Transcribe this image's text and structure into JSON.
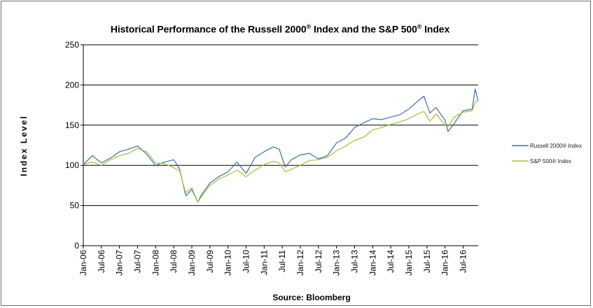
{
  "chart_data": {
    "type": "line",
    "title_parts": [
      "Historical Performance of the Russell 2000",
      "®",
      " Index and the S&P 500",
      "®",
      " Index"
    ],
    "ylabel": "Index Level",
    "xlabel": "",
    "source_label": "Source:  Bloomberg",
    "ylim": [
      0,
      250
    ],
    "yticks": [
      0,
      50,
      100,
      150,
      200,
      250
    ],
    "grid": true,
    "legend_position": "right",
    "xlim": [
      "2006-01",
      "2016-12"
    ],
    "xticks": [
      "Jan-06",
      "Jul-06",
      "Jan-07",
      "Jul-07",
      "Jan-08",
      "Jul-08",
      "Jan-09",
      "Jul-09",
      "Jan-10",
      "Jul-10",
      "Jan-11",
      "Jul-11",
      "Jan-12",
      "Jul-12",
      "Jan-13",
      "Jul-13",
      "Jan-14",
      "Jul-14",
      "Jan-15",
      "Jul-15",
      "Jan-16",
      "Jul-16"
    ],
    "x": [
      "2006-01",
      "2006-04",
      "2006-07",
      "2006-10",
      "2007-01",
      "2007-04",
      "2007-07",
      "2007-10",
      "2008-01",
      "2008-04",
      "2008-07",
      "2008-09",
      "2008-10",
      "2008-11",
      "2009-01",
      "2009-03",
      "2009-04",
      "2009-07",
      "2009-10",
      "2010-01",
      "2010-04",
      "2010-07",
      "2010-10",
      "2011-01",
      "2011-04",
      "2011-06",
      "2011-08",
      "2011-10",
      "2012-01",
      "2012-04",
      "2012-07",
      "2012-10",
      "2013-01",
      "2013-04",
      "2013-07",
      "2013-10",
      "2014-01",
      "2014-04",
      "2014-07",
      "2014-10",
      "2015-01",
      "2015-04",
      "2015-06",
      "2015-08",
      "2015-10",
      "2016-01",
      "2016-02",
      "2016-04",
      "2016-07",
      "2016-10",
      "2016-11",
      "2016-12"
    ],
    "series": [
      {
        "name": "Russell 2000® Index",
        "color": "#3f6fa8",
        "values": [
          101,
          112,
          103,
          109,
          117,
          120,
          124,
          114,
          100,
          104,
          107,
          95,
          78,
          62,
          70,
          54,
          62,
          78,
          86,
          92,
          104,
          90,
          110,
          117,
          123,
          120,
          98,
          107,
          113,
          115,
          108,
          112,
          128,
          134,
          147,
          153,
          158,
          157,
          160,
          163,
          170,
          180,
          186,
          165,
          172,
          156,
          142,
          152,
          168,
          170,
          195,
          180
        ]
      },
      {
        "name": "S&P 500® Index",
        "color": "#a4bf3a",
        "values": [
          101,
          104,
          100,
          107,
          112,
          115,
          121,
          117,
          103,
          102,
          97,
          93,
          78,
          66,
          72,
          54,
          60,
          75,
          83,
          88,
          94,
          86,
          94,
          101,
          105,
          103,
          92,
          95,
          100,
          106,
          107,
          110,
          118,
          124,
          131,
          135,
          144,
          147,
          151,
          154,
          158,
          164,
          167,
          155,
          164,
          150,
          148,
          160,
          166,
          168,
          178,
          182
        ]
      }
    ]
  }
}
